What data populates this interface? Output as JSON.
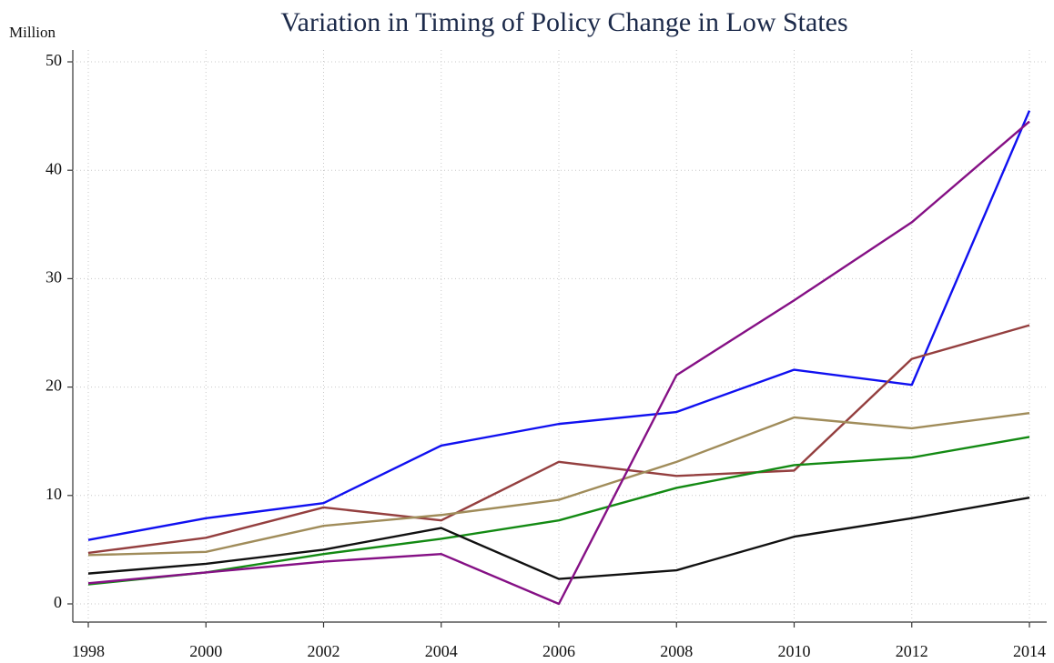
{
  "chart_data": {
    "type": "line",
    "title": "Variation in Timing of Policy Change in Low States",
    "y_label": "Million",
    "x": [
      1998,
      2000,
      2002,
      2004,
      2006,
      2008,
      2010,
      2012,
      2014
    ],
    "xlim": [
      1998,
      2014
    ],
    "xticks": [
      1998,
      2000,
      2002,
      2004,
      2006,
      2008,
      2010,
      2012,
      2014
    ],
    "ylim": [
      0,
      50
    ],
    "yticks": [
      0,
      10,
      20,
      30,
      40,
      50
    ],
    "grid": true,
    "series": [
      {
        "color": "#1010f0",
        "values": [
          5.9,
          7.9,
          9.3,
          14.6,
          16.6,
          17.7,
          21.6,
          20.2,
          45.5
        ]
      },
      {
        "color": "#943f3f",
        "values": [
          4.7,
          6.1,
          8.9,
          7.7,
          13.1,
          11.8,
          12.3,
          22.6,
          25.7
        ]
      },
      {
        "color": "#a08c5a",
        "values": [
          4.5,
          4.8,
          7.2,
          8.2,
          9.6,
          13.1,
          17.2,
          16.2,
          17.6
        ]
      },
      {
        "color": "#138a13",
        "values": [
          1.8,
          2.9,
          4.6,
          6.0,
          7.7,
          10.7,
          12.8,
          13.5,
          15.4
        ]
      },
      {
        "color": "#111111",
        "values": [
          2.8,
          3.7,
          5.0,
          7.0,
          2.3,
          3.1,
          6.2,
          7.9,
          9.8
        ]
      },
      {
        "color": "#851085",
        "values": [
          1.9,
          2.9,
          3.9,
          4.6,
          0,
          21.1,
          28.0,
          35.2,
          44.5
        ]
      }
    ]
  }
}
